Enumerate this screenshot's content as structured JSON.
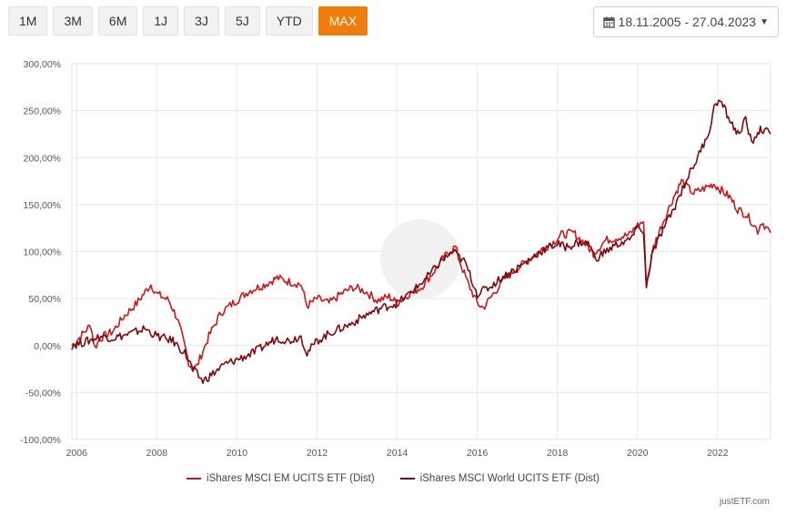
{
  "toolbar": {
    "ranges": [
      "1M",
      "3M",
      "6M",
      "1J",
      "3J",
      "5J",
      "YTD",
      "MAX"
    ],
    "active_range": "MAX",
    "date_range": "18.11.2005 - 27.04.2023",
    "calendar_icon": "calendar-icon",
    "caret_icon": "caret-down-icon"
  },
  "credit": "justETF.com",
  "colors": {
    "em": "#c8191d",
    "world": "#7b0a0e",
    "accent": "#ef7d0c",
    "grid": "#e6e6e6"
  },
  "chart_data": {
    "type": "line",
    "ylim": [
      -100,
      300
    ],
    "yticks": [
      -100,
      -50,
      0,
      50,
      100,
      150,
      200,
      250,
      300
    ],
    "yticklabels": [
      "-100,00%",
      "-50,00%",
      "0,00%",
      "50,00%",
      "100,00%",
      "150,00%",
      "200,00%",
      "250,00%",
      "300,00%"
    ],
    "xlim": [
      2005.88,
      2023.32
    ],
    "xticks": [
      2006,
      2008,
      2010,
      2012,
      2014,
      2016,
      2018,
      2020,
      2022
    ],
    "xticklabels": [
      "2006",
      "2008",
      "2010",
      "2012",
      "2014",
      "2016",
      "2018",
      "2020",
      "2022"
    ],
    "grid": true,
    "legend_position": "bottom",
    "series": [
      {
        "name": "iShares MSCI EM UCITS ETF (Dist)",
        "x": [
          2005.88,
          2006.1,
          2006.35,
          2006.45,
          2006.6,
          2006.9,
          2007.2,
          2007.5,
          2007.85,
          2008.0,
          2008.3,
          2008.5,
          2008.6,
          2008.8,
          2008.9,
          2009.0,
          2009.3,
          2009.6,
          2009.9,
          2010.3,
          2010.7,
          2011.0,
          2011.3,
          2011.6,
          2011.75,
          2012.0,
          2012.3,
          2012.6,
          2012.9,
          2013.2,
          2013.5,
          2013.8,
          2014.0,
          2014.3,
          2014.6,
          2014.9,
          2015.1,
          2015.3,
          2015.45,
          2015.6,
          2015.75,
          2016.0,
          2016.15,
          2016.4,
          2016.7,
          2017.0,
          2017.3,
          2017.6,
          2017.9,
          2018.1,
          2018.4,
          2018.7,
          2018.9,
          2019.2,
          2019.5,
          2019.8,
          2020.0,
          2020.15,
          2020.22,
          2020.4,
          2020.6,
          2020.9,
          2021.1,
          2021.4,
          2021.7,
          2021.9,
          2022.1,
          2022.3,
          2022.5,
          2022.7,
          2022.85,
          2023.0,
          2023.1,
          2023.32
        ],
        "values": [
          0,
          10,
          22,
          -2,
          8,
          15,
          32,
          45,
          65,
          55,
          48,
          30,
          15,
          -18,
          -25,
          -22,
          10,
          35,
          45,
          58,
          65,
          72,
          68,
          65,
          42,
          50,
          45,
          55,
          62,
          58,
          48,
          52,
          45,
          55,
          62,
          78,
          90,
          100,
          105,
          85,
          68,
          45,
          40,
          55,
          72,
          82,
          92,
          102,
          110,
          118,
          120,
          108,
          98,
          112,
          115,
          118,
          128,
          132,
          65,
          105,
          128,
          158,
          175,
          162,
          168,
          172,
          165,
          158,
          145,
          140,
          132,
          122,
          132,
          120
        ]
      },
      {
        "name": "iShares MSCI World UCITS ETF (Dist)",
        "x": [
          2005.88,
          2006.3,
          2006.6,
          2006.9,
          2007.3,
          2007.7,
          2008.0,
          2008.4,
          2008.7,
          2008.9,
          2009.15,
          2009.4,
          2009.7,
          2010.0,
          2010.4,
          2010.7,
          2011.0,
          2011.3,
          2011.6,
          2011.75,
          2012.0,
          2012.4,
          2012.8,
          2013.2,
          2013.6,
          2014.0,
          2014.4,
          2014.8,
          2015.1,
          2015.4,
          2015.7,
          2016.0,
          2016.3,
          2016.6,
          2016.9,
          2017.2,
          2017.5,
          2017.8,
          2018.0,
          2018.2,
          2018.6,
          2018.8,
          2018.95,
          2019.2,
          2019.5,
          2019.8,
          2020.05,
          2020.15,
          2020.22,
          2020.35,
          2020.6,
          2020.9,
          2021.2,
          2021.5,
          2021.8,
          2021.95,
          2022.1,
          2022.3,
          2022.5,
          2022.7,
          2022.85,
          2023.0,
          2023.1,
          2023.32
        ],
        "values": [
          0,
          5,
          10,
          8,
          12,
          18,
          10,
          5,
          -8,
          -25,
          -38,
          -30,
          -20,
          -15,
          -8,
          0,
          8,
          5,
          10,
          -8,
          5,
          15,
          22,
          32,
          40,
          45,
          58,
          75,
          90,
          100,
          88,
          55,
          62,
          72,
          80,
          88,
          98,
          105,
          108,
          105,
          110,
          108,
          92,
          100,
          108,
          112,
          128,
          118,
          62,
          95,
          120,
          145,
          175,
          200,
          230,
          260,
          258,
          240,
          225,
          240,
          215,
          228,
          230,
          225
        ]
      }
    ]
  }
}
